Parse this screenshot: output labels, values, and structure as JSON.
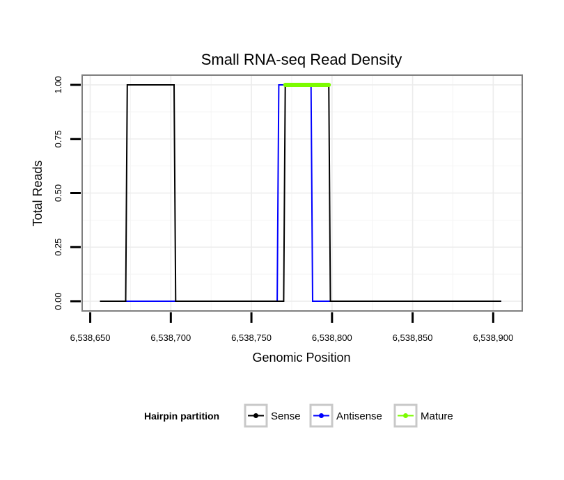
{
  "chart_data": {
    "type": "line",
    "title": "Small RNA-seq Read Density",
    "xlabel": "Genomic Position",
    "ylabel": "Total Reads",
    "xlim": [
      6538645,
      6538918
    ],
    "ylim": [
      -0.045,
      1.045
    ],
    "x_ticks": [
      6538650,
      6538700,
      6538750,
      6538800,
      6538850,
      6538900
    ],
    "x_tick_labels": [
      "6,538,650",
      "6,538,700",
      "6,538,750",
      "6,538,800",
      "6,538,850",
      "6,538,900"
    ],
    "y_ticks": [
      0,
      0.25,
      0.5,
      0.75,
      1.0
    ],
    "y_tick_labels": [
      "0.00",
      "0.25",
      "0.50",
      "0.75",
      "1.00"
    ],
    "grid": true,
    "legend_position": "bottom",
    "legend_title": "Hairpin partition",
    "series": [
      {
        "name": "Antisense",
        "color": "#0000ff",
        "x": [
          6538656,
          6538766,
          6538767,
          6538787,
          6538788,
          6538905
        ],
        "y": [
          0,
          0,
          1,
          1,
          0,
          0
        ]
      },
      {
        "name": "Sense",
        "color": "#000000",
        "x": [
          6538656,
          6538672,
          6538673,
          6538702,
          6538703,
          6538770,
          6538771,
          6538798,
          6538799,
          6538905
        ],
        "y": [
          0,
          0,
          1,
          1,
          0,
          0,
          1,
          1,
          0,
          0
        ]
      },
      {
        "name": "Mature",
        "color": "#7cfc00",
        "x": [
          6538771,
          6538798
        ],
        "y": [
          1,
          1
        ]
      }
    ]
  }
}
